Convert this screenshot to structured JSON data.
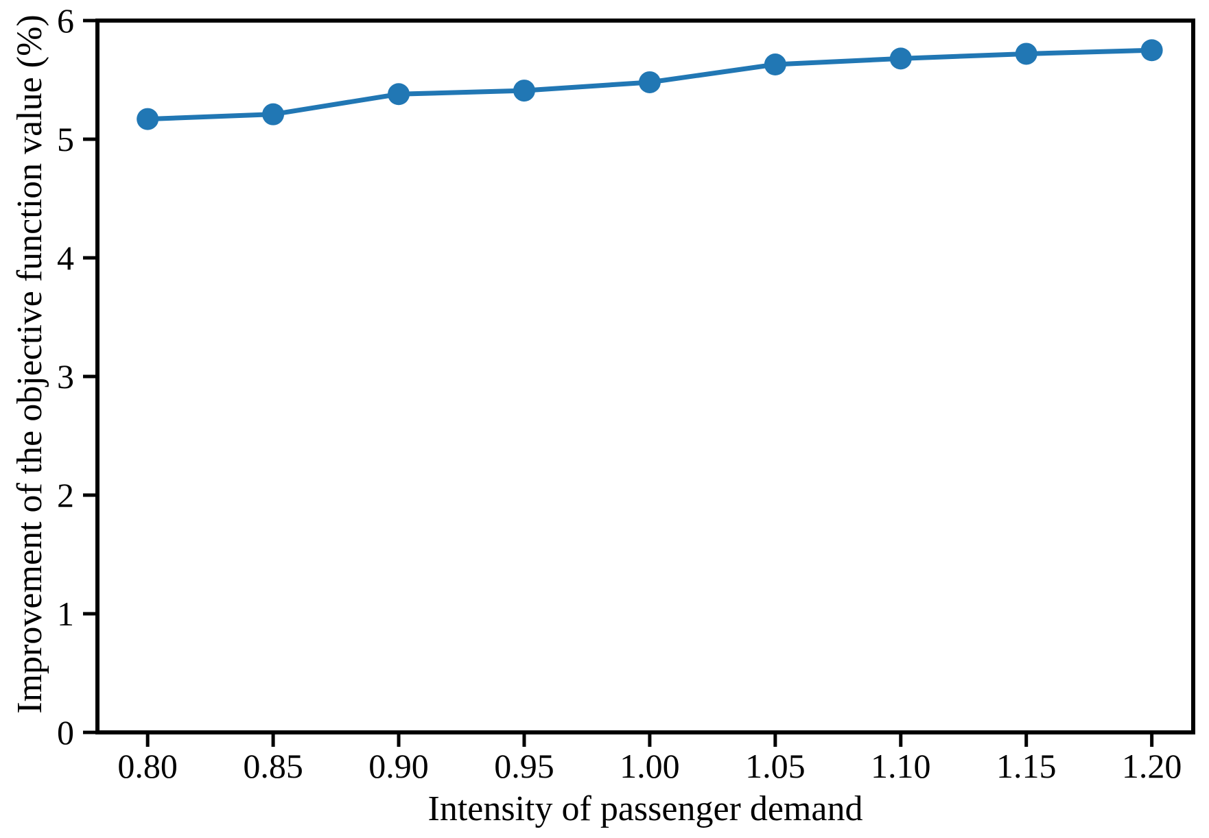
{
  "chart_data": {
    "type": "line",
    "title": "",
    "xlabel": "Intensity of passenger demand",
    "ylabel": "Improvement of the objective function value (%)",
    "x": [
      0.8,
      0.85,
      0.9,
      0.95,
      1.0,
      1.05,
      1.1,
      1.15,
      1.2
    ],
    "y": [
      5.17,
      5.21,
      5.38,
      5.41,
      5.48,
      5.63,
      5.68,
      5.72,
      5.75
    ],
    "x_tick_labels": [
      "0.80",
      "0.85",
      "0.90",
      "0.95",
      "1.00",
      "1.05",
      "1.10",
      "1.15",
      "1.20"
    ],
    "y_ticks": [
      0,
      1,
      2,
      3,
      4,
      5,
      6
    ],
    "y_tick_labels": [
      "0",
      "1",
      "2",
      "3",
      "4",
      "5",
      "6"
    ],
    "xlim": [
      0.78,
      1.2165
    ],
    "ylim": [
      0,
      6
    ],
    "grid": false,
    "legend": "none",
    "marker": "circle",
    "line_color": "#2177b4",
    "marker_color": "#2177b4",
    "axis_color": "#000000",
    "background": "#ffffff"
  }
}
